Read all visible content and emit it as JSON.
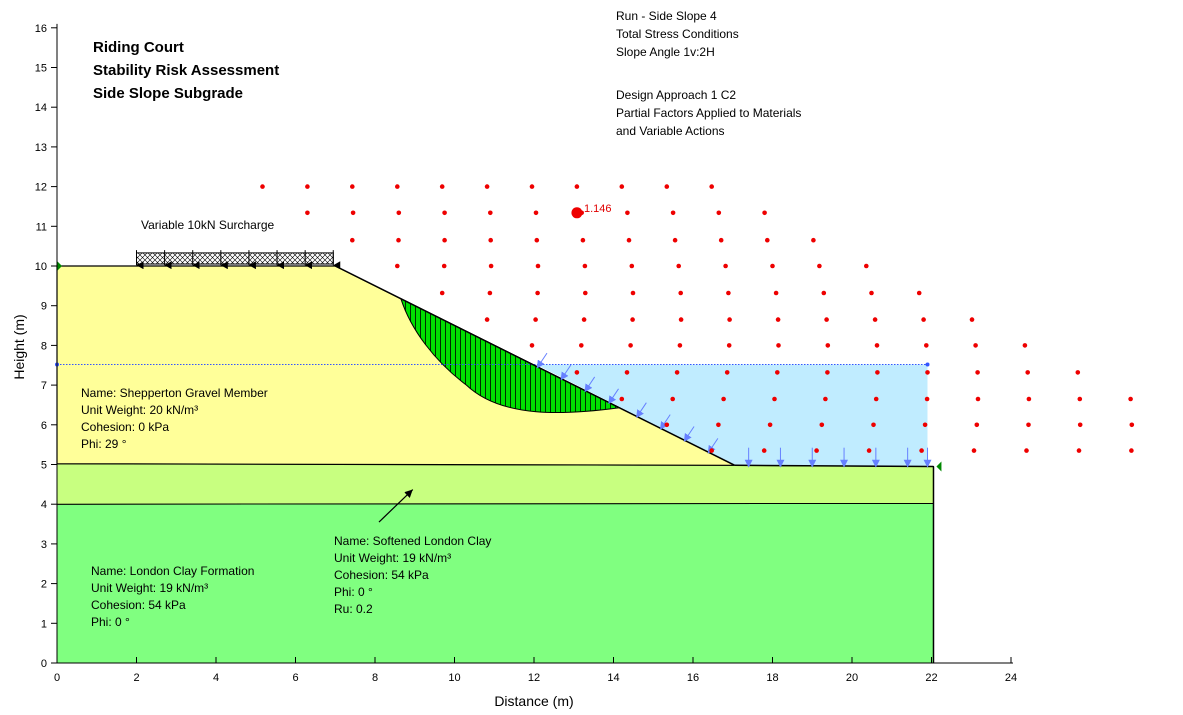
{
  "title_lines": [
    "Riding Court",
    "Stability Risk Assessment",
    "Side Slope Subgrade"
  ],
  "info_lines": [
    "Run - Side Slope 4",
    "Total Stress Conditions",
    "Slope Angle 1v:2H",
    "",
    "Design Approach 1 C2",
    "Partial Factors Applied to Materials",
    "and Variable Actions"
  ],
  "surcharge_label": "Variable 10kN Surcharge",
  "axes": {
    "xlabel": "Distance (m)",
    "ylabel": "Height (m)",
    "x_ticks": [
      0,
      2,
      4,
      6,
      8,
      10,
      12,
      14,
      16,
      18,
      20,
      22,
      24
    ],
    "y_ticks": [
      0,
      1,
      2,
      3,
      4,
      5,
      6,
      7,
      8,
      9,
      10,
      11,
      12,
      13,
      14,
      15,
      16
    ]
  },
  "materials": {
    "gravel": {
      "color": "#ffff99",
      "lines": [
        "Name: Shepperton Gravel Member",
        "Unit Weight: 20 kN/m³",
        "Cohesion: 0 kPa",
        "Phi: 29 °"
      ]
    },
    "softened": {
      "color": "#c8ff80",
      "lines": [
        "Name: Softened London Clay",
        "Unit Weight: 19 kN/m³",
        "Cohesion: 54 kPa",
        "Phi: 0 °",
        "Ru: 0.2"
      ]
    },
    "london": {
      "color": "#80ff80",
      "lines": [
        "Name: London Clay Formation",
        "Unit Weight: 19 kN/m³",
        "Cohesion: 54 kPa",
        "Phi: 0 °"
      ]
    }
  },
  "water_color": "#c0ecff",
  "slip_color": "#00e000",
  "grid_color": "#ee0000",
  "critical_fos": "1.146"
}
